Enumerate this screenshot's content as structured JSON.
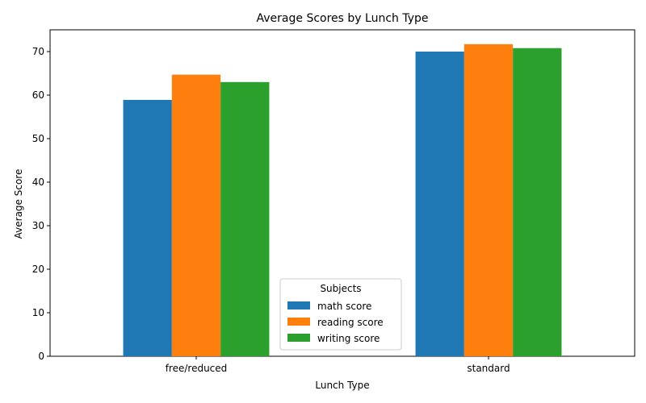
{
  "chart_data": {
    "type": "bar",
    "title": "Average Scores by Lunch Type",
    "xlabel": "Lunch Type",
    "ylabel": "Average Score",
    "categories": [
      "free/reduced",
      "standard"
    ],
    "series": [
      {
        "name": "math score",
        "values": [
          58.9,
          70.0
        ],
        "color": "#1f77b4"
      },
      {
        "name": "reading score",
        "values": [
          64.7,
          71.7
        ],
        "color": "#ff7f0e"
      },
      {
        "name": "writing score",
        "values": [
          63.0,
          70.8
        ],
        "color": "#2ca02c"
      }
    ],
    "ylim": [
      0,
      75
    ],
    "yticks": [
      0,
      10,
      20,
      30,
      40,
      50,
      60,
      70
    ],
    "legend": {
      "title": "Subjects",
      "placement": "bottom-center"
    },
    "grid": false
  }
}
